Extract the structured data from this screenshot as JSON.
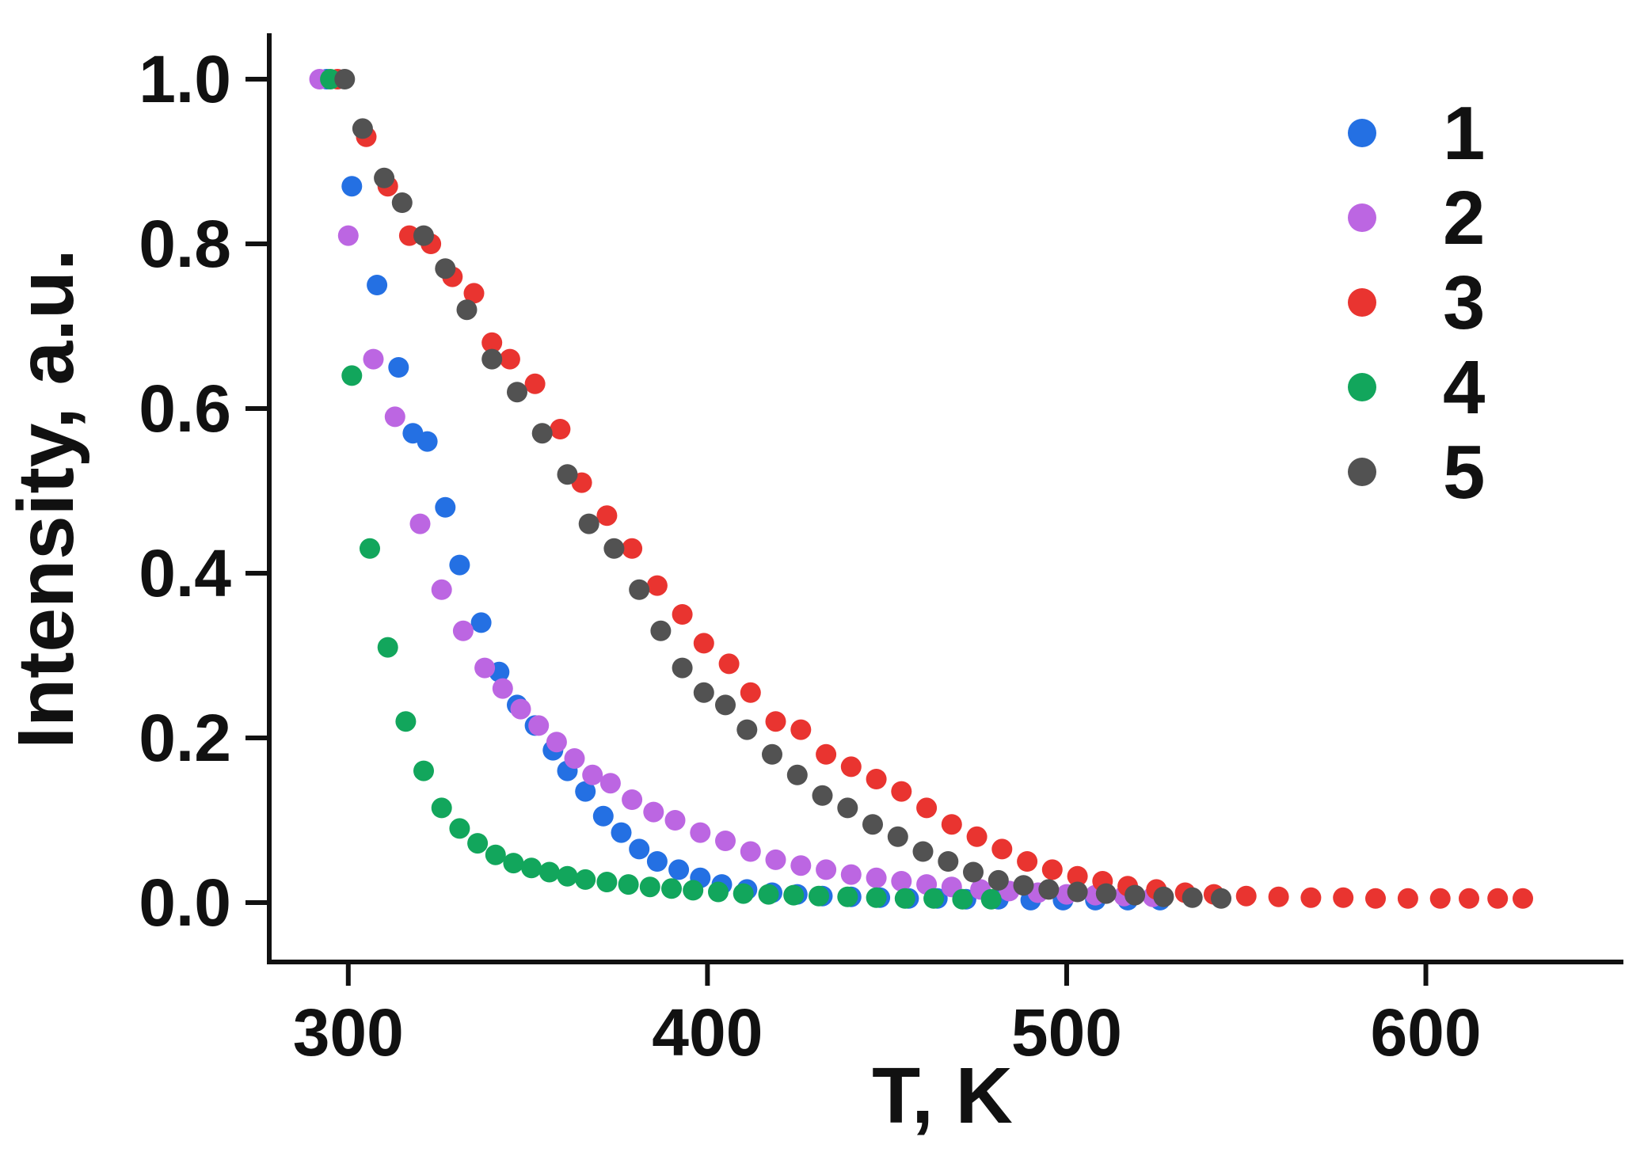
{
  "chart_data": {
    "type": "scatter",
    "title": "",
    "xlabel": "T, K",
    "ylabel": "Intensity, a.u.",
    "xlim": [
      278,
      655
    ],
    "ylim": [
      0.0,
      1.05
    ],
    "xticks": [
      300,
      400,
      500,
      600
    ],
    "yticks": [
      0.0,
      0.2,
      0.4,
      0.6,
      0.8,
      1.0
    ],
    "ytick_labels": [
      "0.0",
      "0.2",
      "0.4",
      "0.6",
      "0.8",
      "1.0"
    ],
    "grid": false,
    "legend_position": "upper right",
    "marker": "circle",
    "series": [
      {
        "name": "1",
        "color": "#2470e3",
        "points": [
          [
            294,
            1.0
          ],
          [
            301,
            0.87
          ],
          [
            308,
            0.75
          ],
          [
            314,
            0.65
          ],
          [
            318,
            0.57
          ],
          [
            322,
            0.56
          ],
          [
            327,
            0.48
          ],
          [
            331,
            0.41
          ],
          [
            337,
            0.34
          ],
          [
            342,
            0.28
          ],
          [
            347,
            0.24
          ],
          [
            352,
            0.215
          ],
          [
            357,
            0.185
          ],
          [
            361,
            0.16
          ],
          [
            366,
            0.135
          ],
          [
            371,
            0.105
          ],
          [
            376,
            0.085
          ],
          [
            381,
            0.065
          ],
          [
            386,
            0.05
          ],
          [
            392,
            0.04
          ],
          [
            398,
            0.03
          ],
          [
            404,
            0.022
          ],
          [
            411,
            0.016
          ],
          [
            418,
            0.012
          ],
          [
            425,
            0.01
          ],
          [
            432,
            0.008
          ],
          [
            440,
            0.007
          ],
          [
            448,
            0.006
          ],
          [
            456,
            0.005
          ],
          [
            464,
            0.005
          ],
          [
            472,
            0.004
          ],
          [
            481,
            0.004
          ],
          [
            490,
            0.003
          ],
          [
            499,
            0.003
          ],
          [
            508,
            0.003
          ],
          [
            517,
            0.003
          ],
          [
            526,
            0.003
          ]
        ]
      },
      {
        "name": "2",
        "color": "#bc66e2",
        "points": [
          [
            292,
            1.0
          ],
          [
            300,
            0.81
          ],
          [
            307,
            0.66
          ],
          [
            313,
            0.59
          ],
          [
            320,
            0.46
          ],
          [
            326,
            0.38
          ],
          [
            332,
            0.33
          ],
          [
            338,
            0.285
          ],
          [
            343,
            0.26
          ],
          [
            348,
            0.235
          ],
          [
            353,
            0.215
          ],
          [
            358,
            0.195
          ],
          [
            363,
            0.175
          ],
          [
            368,
            0.155
          ],
          [
            373,
            0.145
          ],
          [
            379,
            0.125
          ],
          [
            385,
            0.11
          ],
          [
            391,
            0.1
          ],
          [
            398,
            0.085
          ],
          [
            405,
            0.075
          ],
          [
            412,
            0.062
          ],
          [
            419,
            0.052
          ],
          [
            426,
            0.045
          ],
          [
            433,
            0.04
          ],
          [
            440,
            0.034
          ],
          [
            447,
            0.03
          ],
          [
            454,
            0.026
          ],
          [
            461,
            0.022
          ],
          [
            468,
            0.019
          ],
          [
            476,
            0.016
          ],
          [
            484,
            0.014
          ],
          [
            492,
            0.012
          ],
          [
            500,
            0.01
          ],
          [
            508,
            0.009
          ],
          [
            516,
            0.008
          ],
          [
            524,
            0.007
          ]
        ]
      },
      {
        "name": "3",
        "color": "#e93430",
        "points": [
          [
            297,
            1.0
          ],
          [
            305,
            0.93
          ],
          [
            311,
            0.87
          ],
          [
            317,
            0.81
          ],
          [
            323,
            0.8
          ],
          [
            329,
            0.76
          ],
          [
            335,
            0.74
          ],
          [
            340,
            0.68
          ],
          [
            345,
            0.66
          ],
          [
            352,
            0.63
          ],
          [
            359,
            0.575
          ],
          [
            365,
            0.51
          ],
          [
            372,
            0.47
          ],
          [
            379,
            0.43
          ],
          [
            386,
            0.385
          ],
          [
            393,
            0.35
          ],
          [
            399,
            0.315
          ],
          [
            406,
            0.29
          ],
          [
            412,
            0.255
          ],
          [
            419,
            0.22
          ],
          [
            426,
            0.21
          ],
          [
            433,
            0.18
          ],
          [
            440,
            0.165
          ],
          [
            447,
            0.15
          ],
          [
            454,
            0.135
          ],
          [
            461,
            0.115
          ],
          [
            468,
            0.095
          ],
          [
            475,
            0.08
          ],
          [
            482,
            0.065
          ],
          [
            489,
            0.05
          ],
          [
            496,
            0.04
          ],
          [
            503,
            0.032
          ],
          [
            510,
            0.026
          ],
          [
            517,
            0.02
          ],
          [
            525,
            0.016
          ],
          [
            533,
            0.012
          ],
          [
            541,
            0.01
          ],
          [
            550,
            0.008
          ],
          [
            559,
            0.007
          ],
          [
            568,
            0.006
          ],
          [
            577,
            0.006
          ],
          [
            586,
            0.005
          ],
          [
            595,
            0.005
          ],
          [
            604,
            0.005
          ],
          [
            612,
            0.005
          ],
          [
            620,
            0.005
          ],
          [
            627,
            0.005
          ]
        ]
      },
      {
        "name": "4",
        "color": "#12a65c",
        "points": [
          [
            295,
            1.0
          ],
          [
            301,
            0.64
          ],
          [
            306,
            0.43
          ],
          [
            311,
            0.31
          ],
          [
            316,
            0.22
          ],
          [
            321,
            0.16
          ],
          [
            326,
            0.115
          ],
          [
            331,
            0.09
          ],
          [
            336,
            0.072
          ],
          [
            341,
            0.058
          ],
          [
            346,
            0.048
          ],
          [
            351,
            0.042
          ],
          [
            356,
            0.037
          ],
          [
            361,
            0.032
          ],
          [
            366,
            0.028
          ],
          [
            372,
            0.025
          ],
          [
            378,
            0.022
          ],
          [
            384,
            0.019
          ],
          [
            390,
            0.017
          ],
          [
            396,
            0.015
          ],
          [
            403,
            0.013
          ],
          [
            410,
            0.011
          ],
          [
            417,
            0.01
          ],
          [
            424,
            0.009
          ],
          [
            431,
            0.008
          ],
          [
            439,
            0.007
          ],
          [
            447,
            0.006
          ],
          [
            455,
            0.005
          ],
          [
            463,
            0.005
          ],
          [
            471,
            0.004
          ],
          [
            479,
            0.004
          ]
        ]
      },
      {
        "name": "5",
        "color": "#525252",
        "points": [
          [
            299,
            1.0
          ],
          [
            304,
            0.94
          ],
          [
            310,
            0.88
          ],
          [
            315,
            0.85
          ],
          [
            321,
            0.81
          ],
          [
            327,
            0.77
          ],
          [
            333,
            0.72
          ],
          [
            340,
            0.66
          ],
          [
            347,
            0.62
          ],
          [
            354,
            0.57
          ],
          [
            361,
            0.52
          ],
          [
            367,
            0.46
          ],
          [
            374,
            0.43
          ],
          [
            381,
            0.38
          ],
          [
            387,
            0.33
          ],
          [
            393,
            0.285
          ],
          [
            399,
            0.255
          ],
          [
            405,
            0.24
          ],
          [
            411,
            0.21
          ],
          [
            418,
            0.18
          ],
          [
            425,
            0.155
          ],
          [
            432,
            0.13
          ],
          [
            439,
            0.115
          ],
          [
            446,
            0.095
          ],
          [
            453,
            0.08
          ],
          [
            460,
            0.062
          ],
          [
            467,
            0.05
          ],
          [
            474,
            0.037
          ],
          [
            481,
            0.027
          ],
          [
            488,
            0.021
          ],
          [
            495,
            0.016
          ],
          [
            503,
            0.013
          ],
          [
            511,
            0.011
          ],
          [
            519,
            0.009
          ],
          [
            527,
            0.007
          ],
          [
            535,
            0.006
          ],
          [
            543,
            0.005
          ]
        ]
      }
    ],
    "legend": [
      {
        "label": "1",
        "color": "#2470e3"
      },
      {
        "label": "2",
        "color": "#bc66e2"
      },
      {
        "label": "3",
        "color": "#e93430"
      },
      {
        "label": "4",
        "color": "#12a65c"
      },
      {
        "label": "5",
        "color": "#525252"
      }
    ]
  }
}
